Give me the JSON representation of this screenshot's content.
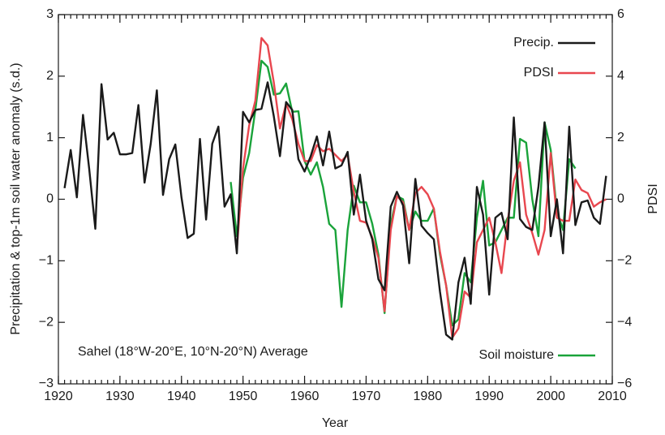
{
  "chart_data": {
    "type": "line",
    "annotation": "Sahel (18°W-20°E, 10°N-20°N) Average",
    "xlabel": "Year",
    "ylabel": "Precipitation & top-1m soil water anomaly (s.d.)",
    "y2label": "PDSI",
    "x": [
      1921,
      1922,
      1923,
      1924,
      1925,
      1926,
      1927,
      1928,
      1929,
      1930,
      1931,
      1932,
      1933,
      1934,
      1935,
      1936,
      1937,
      1938,
      1939,
      1940,
      1941,
      1942,
      1943,
      1944,
      1945,
      1946,
      1947,
      1948,
      1949,
      1950,
      1951,
      1952,
      1953,
      1954,
      1955,
      1956,
      1957,
      1958,
      1959,
      1960,
      1961,
      1962,
      1963,
      1964,
      1965,
      1966,
      1967,
      1968,
      1969,
      1970,
      1971,
      1972,
      1973,
      1974,
      1975,
      1976,
      1977,
      1978,
      1979,
      1980,
      1981,
      1982,
      1983,
      1984,
      1985,
      1986,
      1987,
      1988,
      1989,
      1990,
      1991,
      1992,
      1993,
      1994,
      1995,
      1996,
      1997,
      1998,
      1999,
      2000,
      2001,
      2002,
      2003,
      2004,
      2005,
      2006,
      2007,
      2008,
      2009
    ],
    "series": [
      {
        "name": "Precip.",
        "color": "#1a1a1a",
        "axis": "y",
        "values": [
          0.18,
          0.8,
          0.03,
          1.37,
          0.5,
          -0.48,
          1.87,
          0.97,
          1.08,
          0.73,
          0.73,
          0.75,
          1.53,
          0.27,
          0.9,
          1.77,
          0.07,
          0.65,
          0.89,
          0.03,
          -0.63,
          -0.56,
          0.98,
          -0.33,
          0.9,
          1.18,
          -0.12,
          0.08,
          -0.88,
          1.42,
          1.25,
          1.45,
          1.47,
          1.9,
          1.35,
          0.7,
          1.58,
          1.45,
          0.65,
          0.45,
          0.7,
          1.02,
          0.55,
          1.1,
          0.5,
          0.55,
          0.77,
          -0.25,
          0.4,
          -0.35,
          -0.65,
          -1.3,
          -1.48,
          -0.12,
          0.12,
          -0.1,
          -1.04,
          0.33,
          -0.43,
          -0.55,
          -0.65,
          -1.5,
          -2.2,
          -2.28,
          -1.35,
          -0.95,
          -1.7,
          0.2,
          -0.25,
          -1.55,
          -0.3,
          -0.22,
          -0.65,
          1.33,
          -0.32,
          -0.45,
          -0.5,
          0.2,
          1.25,
          -0.6,
          0.0,
          -0.88,
          1.18,
          -0.42,
          -0.05,
          -0.02,
          -0.3,
          -0.4,
          0.38
        ]
      },
      {
        "name": "PDSI",
        "color": "#e8474f",
        "axis": "y2",
        "values": [
          null,
          null,
          null,
          null,
          null,
          null,
          null,
          null,
          null,
          null,
          null,
          null,
          null,
          null,
          null,
          null,
          null,
          null,
          null,
          null,
          null,
          null,
          null,
          null,
          null,
          null,
          null,
          null,
          -1.6,
          1.0,
          2.4,
          3.2,
          5.24,
          5.0,
          3.8,
          2.3,
          3.1,
          2.6,
          1.8,
          1.24,
          1.24,
          1.76,
          1.56,
          1.64,
          1.44,
          1.24,
          1.44,
          0.24,
          -0.7,
          -0.76,
          -1.24,
          -1.9,
          -3.64,
          -1.0,
          0.1,
          -0.1,
          -1.0,
          0.2,
          0.4,
          0.16,
          -0.3,
          -1.7,
          -2.8,
          -4.5,
          -4.2,
          -3.0,
          -3.2,
          -1.4,
          -1.0,
          -0.6,
          -1.4,
          -2.4,
          -0.7,
          0.6,
          1.2,
          -0.5,
          -1.1,
          -1.8,
          -1.0,
          1.5,
          -0.6,
          -0.7,
          -0.7,
          0.64,
          0.3,
          0.2,
          -0.24,
          -0.1,
          0.0
        ]
      },
      {
        "name": "Soil moisture",
        "color": "#1aa33a",
        "axis": "y",
        "values": [
          null,
          null,
          null,
          null,
          null,
          null,
          null,
          null,
          null,
          null,
          null,
          null,
          null,
          null,
          null,
          null,
          null,
          null,
          null,
          null,
          null,
          null,
          null,
          null,
          null,
          null,
          null,
          0.28,
          -0.6,
          0.35,
          0.75,
          1.45,
          2.25,
          2.15,
          1.7,
          1.72,
          1.88,
          1.42,
          1.43,
          0.62,
          0.4,
          0.6,
          0.2,
          -0.4,
          -0.5,
          -1.75,
          -0.5,
          0.22,
          -0.05,
          -0.05,
          -0.4,
          -0.9,
          -1.85,
          -0.4,
          0.05,
          0.0,
          -0.5,
          -0.2,
          -0.35,
          -0.35,
          -0.15,
          -0.9,
          -1.4,
          -2.05,
          -1.95,
          -1.2,
          -1.35,
          -0.3,
          0.3,
          -0.75,
          -0.7,
          -0.5,
          -0.3,
          -0.3,
          0.98,
          0.92,
          0.0,
          -0.6,
          1.25,
          0.8,
          -0.2,
          -0.5,
          0.65,
          0.5,
          null,
          null,
          null,
          null,
          null
        ]
      }
    ],
    "xlim": [
      1920,
      2010
    ],
    "xticks": [
      1920,
      1930,
      1940,
      1950,
      1960,
      1970,
      1980,
      1990,
      2000,
      2010
    ],
    "ylim": [
      -3,
      3
    ],
    "yticks": [
      {
        "value": -3,
        "label": "−3"
      },
      {
        "value": -2,
        "label": "−2"
      },
      {
        "value": -1,
        "label": "−1"
      },
      0,
      1,
      2,
      3
    ],
    "y2lim": [
      -6,
      6
    ],
    "y2ticks": [
      {
        "value": -6,
        "label": "−6"
      },
      {
        "value": -4,
        "label": "−4"
      },
      {
        "value": -2,
        "label": "−2"
      },
      0,
      2,
      4,
      6
    ]
  }
}
